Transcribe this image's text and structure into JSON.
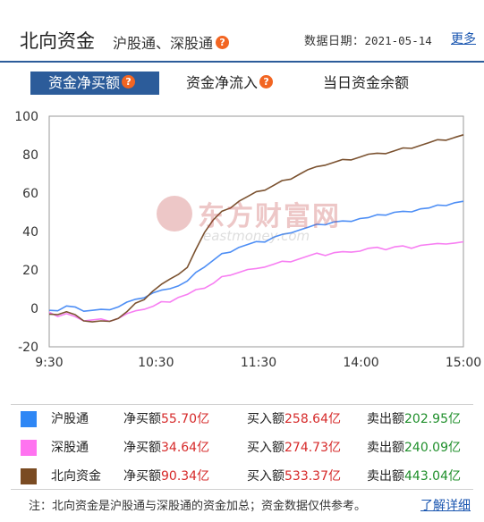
{
  "header": {
    "title": "北向资金",
    "subtitle": "沪股通、深股通",
    "help_glyph": "?",
    "date_label": "数据日期：",
    "date_value": "2021-05-14",
    "more_label": "更多"
  },
  "tabs": [
    {
      "label": "资金净买额",
      "active": true,
      "has_help": true
    },
    {
      "label": "资金净流入",
      "active": false,
      "has_help": true
    },
    {
      "label": "当日资金余额",
      "active": false,
      "has_help": false
    }
  ],
  "watermark": {
    "brand": "东方财富网",
    "domain": "eastmoney.com"
  },
  "chart_data": {
    "type": "line",
    "x_ticks": [
      "9:30",
      "10:30",
      "11:30",
      "14:00",
      "15:00"
    ],
    "ylim": [
      -20,
      100
    ],
    "y_ticks": [
      -20,
      0,
      20,
      40,
      60,
      80,
      100
    ],
    "grid": false,
    "x": [
      "9:30",
      "9:35",
      "9:40",
      "9:45",
      "9:50",
      "9:55",
      "10:00",
      "10:05",
      "10:10",
      "10:15",
      "10:20",
      "10:25",
      "10:30",
      "10:35",
      "10:40",
      "10:45",
      "10:50",
      "10:55",
      "11:00",
      "11:05",
      "11:10",
      "11:15",
      "11:20",
      "11:25",
      "11:30",
      "13:05",
      "13:10",
      "13:15",
      "13:20",
      "13:25",
      "13:30",
      "13:35",
      "13:40",
      "13:45",
      "13:50",
      "13:55",
      "14:00",
      "14:05",
      "14:10",
      "14:15",
      "14:20",
      "14:25",
      "14:30",
      "14:35",
      "14:40",
      "14:45",
      "14:50",
      "14:55",
      "15:00"
    ],
    "series": [
      {
        "name": "沪股通",
        "color": "#4d8ef5",
        "values": [
          -1,
          -1,
          1,
          0,
          -1,
          -1,
          -1,
          0,
          1,
          3,
          4,
          6,
          8,
          9,
          11,
          12,
          14,
          18,
          22,
          25,
          28,
          30,
          32,
          33,
          34,
          35,
          37,
          38,
          40,
          41,
          42,
          43,
          44,
          45,
          45,
          46,
          47,
          47,
          48,
          49,
          50,
          50,
          51,
          52,
          52,
          53,
          54,
          55,
          55.7
        ]
      },
      {
        "name": "深股通",
        "color": "#f77ef2",
        "values": [
          -2,
          -4,
          -3,
          -5,
          -6,
          -6,
          -6,
          -6,
          -5,
          -3,
          -2,
          0,
          1,
          3,
          4,
          6,
          7,
          9,
          11,
          13,
          16,
          18,
          19,
          20,
          20,
          22,
          23,
          24,
          25,
          26,
          27,
          28,
          28,
          29,
          29,
          30,
          30,
          31,
          31,
          31,
          32,
          32,
          32,
          33,
          33,
          33,
          34,
          34,
          34.64
        ]
      },
      {
        "name": "北向资金",
        "color": "#7b5230",
        "values": [
          -3,
          -3,
          -2,
          -4,
          -6,
          -7,
          -7,
          -6,
          -5,
          -2,
          2,
          5,
          9,
          12,
          16,
          18,
          21,
          30,
          40,
          46,
          50,
          53,
          56,
          58,
          60,
          62,
          64,
          66,
          68,
          70,
          72,
          73,
          75,
          76,
          77,
          78,
          79,
          80,
          80,
          81,
          82,
          83,
          84,
          85,
          86,
          87,
          88,
          89,
          90.34
        ]
      }
    ]
  },
  "legend": [
    {
      "name": "沪股通",
      "color": "#2f87f5",
      "net_label": "净买额",
      "net_value": "55.70亿",
      "buy_label": "买入额",
      "buy_value": "258.64亿",
      "sell_label": "卖出额",
      "sell_value": "202.95亿"
    },
    {
      "name": "深股通",
      "color": "#ff73f0",
      "net_label": "净买额",
      "net_value": "34.64亿",
      "buy_label": "买入额",
      "buy_value": "274.73亿",
      "sell_label": "卖出额",
      "sell_value": "240.09亿"
    },
    {
      "name": "北向资金",
      "color": "#7a4b22",
      "net_label": "净买额",
      "net_value": "90.34亿",
      "buy_label": "买入额",
      "buy_value": "533.37亿",
      "sell_label": "卖出额",
      "sell_value": "443.04亿"
    }
  ],
  "footer": {
    "note": "注：北向资金是沪股通与深股通的资金加总；资金数据仅供参考。",
    "detail_link": "了解详细"
  }
}
